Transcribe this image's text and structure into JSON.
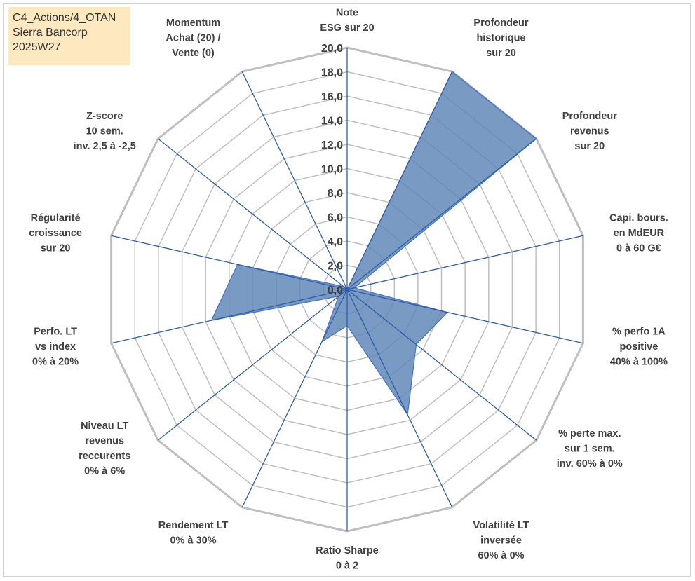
{
  "info": {
    "line1": "C4_Actions/4_OTAN",
    "line2": "Sierra Bancorp",
    "line3": "2025W27"
  },
  "colors": {
    "fill": "#5b84b5",
    "stroke": "#4472c4",
    "grid": "#bfbfbf",
    "spoke": "#2f5ea8"
  },
  "chart_data": {
    "type": "radar",
    "rmax": 20,
    "ticks": [
      0,
      2,
      4,
      6,
      8,
      10,
      12,
      14,
      16,
      18,
      20
    ],
    "tick_labels": [
      "0,0",
      "2,0",
      "4,0",
      "6,0",
      "8,0",
      "10,0",
      "12,0",
      "14,0",
      "16,0",
      "18,0",
      "20,0"
    ],
    "axes": [
      {
        "lines": [
          "Note",
          "ESG sur 20"
        ],
        "value": 0
      },
      {
        "lines": [
          "Profondeur",
          "historique",
          "sur 20"
        ],
        "value": 20
      },
      {
        "lines": [
          "Profondeur",
          "revenus",
          "sur 20"
        ],
        "value": 20
      },
      {
        "lines": [
          "Capi. bours.",
          "en MdEUR",
          "0 à 60 G€"
        ],
        "value": 0.6
      },
      {
        "lines": [
          "% perfo 1A",
          "positive",
          "40% à 100%"
        ],
        "value": 8.5
      },
      {
        "lines": [
          "% perte max.",
          "sur 1 sem.",
          "inv. 60% à 0%"
        ],
        "value": 7.3
      },
      {
        "lines": [
          "Volatilité LT",
          "inversée",
          "60% à 0%"
        ],
        "value": 11.5
      },
      {
        "lines": [
          "Ratio Sharpe",
          "0 à 2"
        ],
        "value": 3.0
      },
      {
        "lines": [
          "Rendement LT",
          "0% à 30%"
        ],
        "value": 4.8
      },
      {
        "lines": [
          "Niveau LT",
          "revenus",
          "reccurents",
          "0% à 6%"
        ],
        "value": 0.9
      },
      {
        "lines": [
          "Perfo. LT",
          "vs index",
          "0% à 20%"
        ],
        "value": 11.5
      },
      {
        "lines": [
          "Régularité",
          "croissance",
          "sur 20"
        ],
        "value": 9.3
      },
      {
        "lines": [
          "Z-score",
          "10 sem.",
          "inv. 2,5 à -2,5"
        ],
        "value": 0.4
      },
      {
        "lines": [
          "Momentum",
          "Achat (20) /",
          "Vente (0)"
        ],
        "value": 0.2
      }
    ]
  }
}
